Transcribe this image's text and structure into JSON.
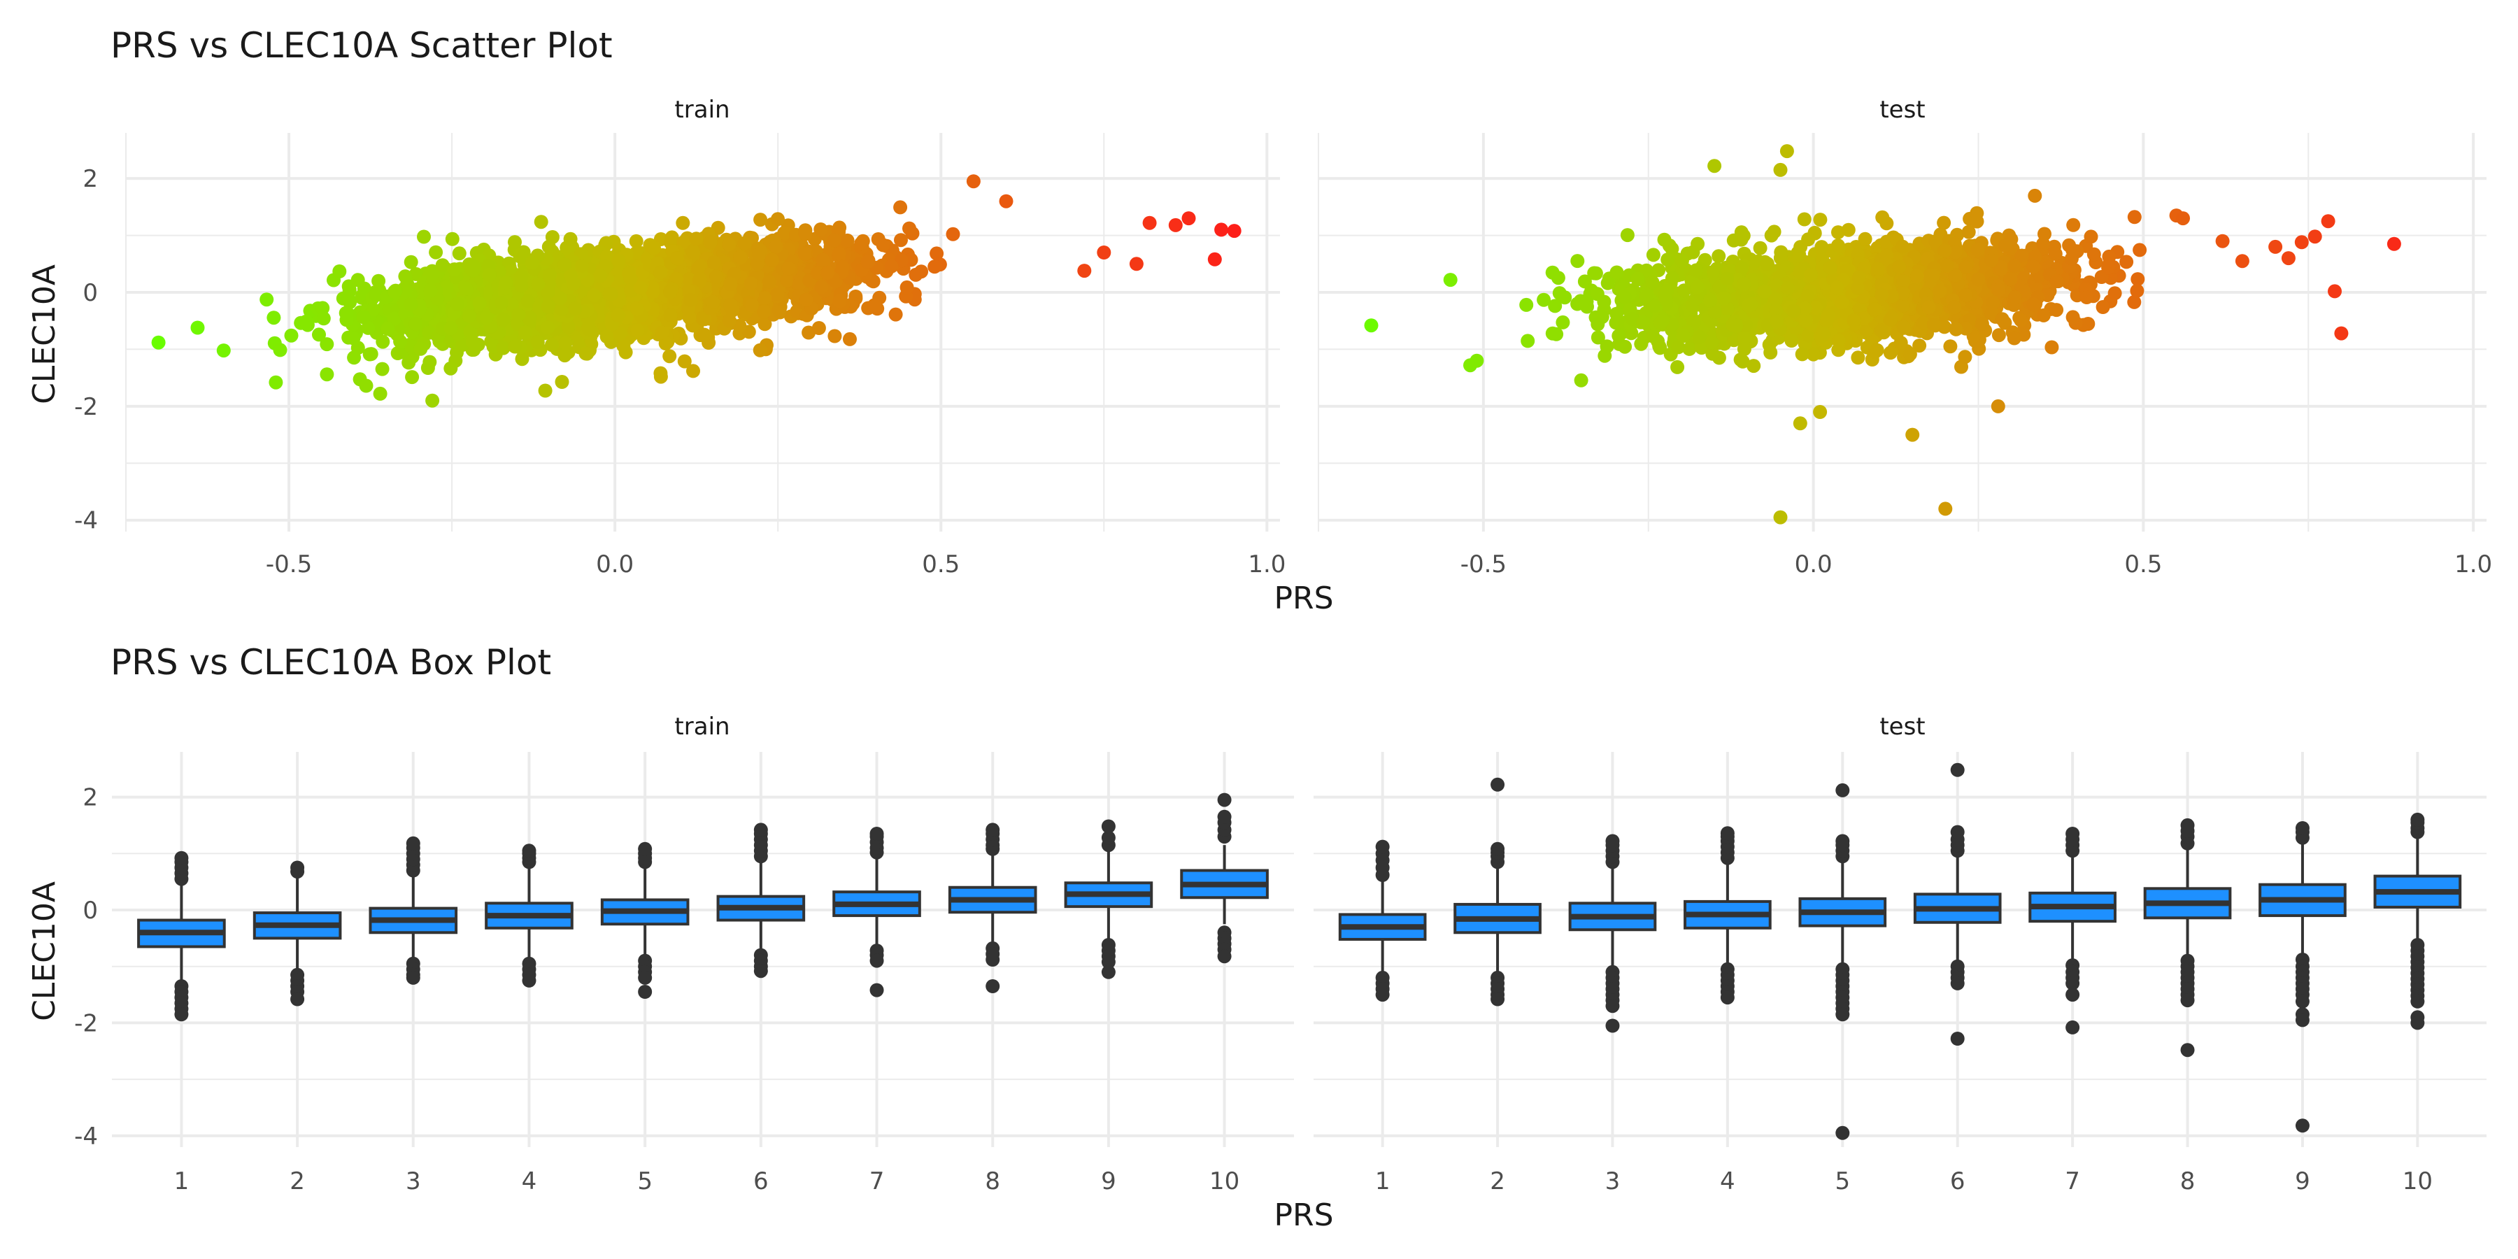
{
  "colors": {
    "background": "#ffffff",
    "grid": "#ebebeb",
    "tick_text": "#4d4d4d",
    "text": "#1a1a1a",
    "box_fill": "#1e90ff",
    "box_line": "#333333",
    "outlier": "#333333",
    "gradient_low": "#66ff00",
    "gradient_mid": "#c8b400",
    "gradient_high": "#ff1a1a"
  },
  "chart_data": [
    {
      "type": "scatter",
      "title": "PRS vs CLEC10A Scatter Plot",
      "xlabel": "PRS",
      "ylabel": "CLEC10A",
      "color_scale": "PRS gradient green-orange-red",
      "facets": [
        {
          "name": "train",
          "xlim": [
            -0.75,
            1.02
          ],
          "ylim": [
            -4.2,
            2.8
          ],
          "xticks": [
            "-0.5",
            "0.0",
            "0.5",
            "1.0"
          ],
          "xtick_values": [
            -0.5,
            0.0,
            0.5,
            1.0
          ],
          "yticks": [
            "2",
            "0",
            "-2",
            "-4"
          ],
          "ytick_values": [
            2,
            0,
            -2,
            -4
          ],
          "trend": {
            "slope": 1.05,
            "intercept": -0.02,
            "sd": 0.38
          },
          "x_range_dense": [
            -0.62,
            0.62
          ],
          "n_points": 2600,
          "extreme_points": [
            [
              -0.7,
              -0.88
            ],
            [
              -0.64,
              -0.62
            ],
            [
              -0.6,
              -1.02
            ],
            [
              -0.52,
              -1.58
            ],
            [
              -0.36,
              -1.78
            ],
            [
              -0.28,
              -1.9
            ],
            [
              0.07,
              -1.42
            ],
            [
              0.12,
              -1.38
            ],
            [
              0.55,
              1.95
            ],
            [
              0.6,
              1.6
            ],
            [
              0.72,
              0.38
            ],
            [
              0.75,
              0.7
            ],
            [
              0.8,
              0.5
            ],
            [
              0.82,
              1.22
            ],
            [
              0.86,
              1.18
            ],
            [
              0.88,
              1.3
            ],
            [
              0.92,
              0.58
            ],
            [
              0.93,
              1.1
            ],
            [
              0.95,
              1.08
            ]
          ]
        },
        {
          "name": "test",
          "xlim": [
            -0.75,
            1.02
          ],
          "ylim": [
            -4.2,
            2.8
          ],
          "xticks": [
            "-0.5",
            "0.0",
            "0.5",
            "1.0"
          ],
          "xtick_values": [
            -0.5,
            0.0,
            0.5,
            1.0
          ],
          "yticks": [
            "2",
            "0",
            "-2",
            "-4"
          ],
          "ytick_values": [
            2,
            0,
            -2,
            -4
          ],
          "trend": {
            "slope": 0.7,
            "intercept": -0.05,
            "sd": 0.4
          },
          "x_range_dense": [
            -0.5,
            0.6
          ],
          "n_points": 2200,
          "extreme_points": [
            [
              -0.67,
              -0.58
            ],
            [
              -0.55,
              0.22
            ],
            [
              -0.52,
              -1.28
            ],
            [
              -0.51,
              -1.2
            ],
            [
              -0.15,
              2.22
            ],
            [
              -0.05,
              2.15
            ],
            [
              -0.04,
              2.48
            ],
            [
              -0.05,
              -3.95
            ],
            [
              0.15,
              -2.5
            ],
            [
              -0.02,
              -2.3
            ],
            [
              0.01,
              -2.1
            ],
            [
              0.2,
              -3.8
            ],
            [
              0.28,
              -2.0
            ],
            [
              0.55,
              1.35
            ],
            [
              0.56,
              1.3
            ],
            [
              0.62,
              0.9
            ],
            [
              0.65,
              0.55
            ],
            [
              0.7,
              0.8
            ],
            [
              0.72,
              0.6
            ],
            [
              0.74,
              0.88
            ],
            [
              0.76,
              0.98
            ],
            [
              0.78,
              1.25
            ],
            [
              0.79,
              0.02
            ],
            [
              0.8,
              -0.72
            ],
            [
              0.88,
              0.85
            ]
          ]
        }
      ]
    },
    {
      "type": "box",
      "title": "PRS vs CLEC10A Box Plot",
      "xlabel": "PRS",
      "ylabel": "CLEC10A",
      "categories": [
        "1",
        "2",
        "3",
        "4",
        "5",
        "6",
        "7",
        "8",
        "9",
        "10"
      ],
      "ylim": [
        -4.2,
        2.8
      ],
      "yticks": [
        "2",
        "0",
        "-2",
        "-4"
      ],
      "ytick_values": [
        2,
        0,
        -2,
        -4
      ],
      "facets": [
        {
          "name": "train",
          "boxes": [
            {
              "q1": -0.65,
              "median": -0.4,
              "q3": -0.18,
              "whisker_low": -1.25,
              "whisker_high": 0.45,
              "outliers": [
                -1.35,
                -1.45,
                -1.55,
                -1.65,
                -1.75,
                -1.85,
                0.55,
                0.65,
                0.75,
                0.85,
                0.92
              ]
            },
            {
              "q1": -0.5,
              "median": -0.27,
              "q3": -0.05,
              "whisker_low": -1.05,
              "whisker_high": 0.62,
              "outliers": [
                -1.15,
                -1.25,
                -1.35,
                -1.45,
                -1.58,
                0.68,
                0.75
              ]
            },
            {
              "q1": -0.4,
              "median": -0.18,
              "q3": 0.03,
              "whisker_low": -0.9,
              "whisker_high": 0.62,
              "outliers": [
                -0.95,
                -1.05,
                -1.15,
                -1.2,
                0.7,
                0.8,
                0.9,
                1.0,
                1.1,
                1.18
              ]
            },
            {
              "q1": -0.32,
              "median": -0.1,
              "q3": 0.12,
              "whisker_low": -0.9,
              "whisker_high": 0.75,
              "outliers": [
                -0.95,
                -1.05,
                -1.15,
                -1.25,
                0.85,
                0.92,
                1.0,
                1.05
              ]
            },
            {
              "q1": -0.25,
              "median": -0.02,
              "q3": 0.18,
              "whisker_low": -0.85,
              "whisker_high": 0.8,
              "outliers": [
                -0.9,
                -1.0,
                -1.1,
                -1.2,
                -1.45,
                0.85,
                0.92,
                1.0,
                1.08
              ]
            },
            {
              "q1": -0.18,
              "median": 0.04,
              "q3": 0.24,
              "whisker_low": -0.75,
              "whisker_high": 0.85,
              "outliers": [
                -0.8,
                -0.9,
                -1.0,
                -1.08,
                0.95,
                1.05,
                1.15,
                1.25,
                1.35,
                1.42
              ]
            },
            {
              "q1": -0.1,
              "median": 0.1,
              "q3": 0.32,
              "whisker_low": -0.65,
              "whisker_high": 0.95,
              "outliers": [
                -0.72,
                -0.8,
                -0.9,
                -1.42,
                1.02,
                1.1,
                1.2,
                1.3,
                1.35
              ]
            },
            {
              "q1": -0.04,
              "median": 0.18,
              "q3": 0.4,
              "whisker_low": -0.6,
              "whisker_high": 1.0,
              "outliers": [
                -0.68,
                -0.78,
                -0.88,
                -1.35,
                1.08,
                1.15,
                1.25,
                1.35,
                1.42
              ]
            },
            {
              "q1": 0.06,
              "median": 0.28,
              "q3": 0.48,
              "whisker_low": -0.55,
              "whisker_high": 1.08,
              "outliers": [
                -0.62,
                -0.72,
                -0.82,
                -0.92,
                -1.1,
                1.15,
                1.28,
                1.48
              ]
            },
            {
              "q1": 0.22,
              "median": 0.45,
              "q3": 0.7,
              "whisker_low": -0.25,
              "whisker_high": 1.15,
              "outliers": [
                -0.4,
                -0.5,
                -0.6,
                -0.7,
                -0.82,
                1.3,
                1.42,
                1.55,
                1.65,
                1.95
              ]
            }
          ]
        },
        {
          "name": "test",
          "boxes": [
            {
              "q1": -0.52,
              "median": -0.3,
              "q3": -0.08,
              "whisker_low": -1.1,
              "whisker_high": 0.55,
              "outliers": [
                -1.2,
                -1.3,
                -1.4,
                -1.5,
                0.62,
                0.75,
                0.88,
                1.0,
                1.12
              ]
            },
            {
              "q1": -0.4,
              "median": -0.16,
              "q3": 0.1,
              "whisker_low": -1.1,
              "whisker_high": 0.8,
              "outliers": [
                -1.2,
                -1.3,
                -1.4,
                -1.5,
                -1.58,
                0.85,
                0.95,
                1.02,
                1.08,
                2.22
              ]
            },
            {
              "q1": -0.35,
              "median": -0.12,
              "q3": 0.12,
              "whisker_low": -1.05,
              "whisker_high": 0.8,
              "outliers": [
                -1.1,
                -1.2,
                -1.3,
                -1.4,
                -1.5,
                -1.6,
                -1.7,
                -2.05,
                0.85,
                0.95,
                1.05,
                1.15,
                1.22
              ]
            },
            {
              "q1": -0.32,
              "median": -0.08,
              "q3": 0.15,
              "whisker_low": -1.0,
              "whisker_high": 0.85,
              "outliers": [
                -1.05,
                -1.15,
                -1.25,
                -1.35,
                -1.45,
                -1.55,
                0.92,
                1.02,
                1.12,
                1.22,
                1.3,
                1.36
              ]
            },
            {
              "q1": -0.28,
              "median": -0.04,
              "q3": 0.2,
              "whisker_low": -1.0,
              "whisker_high": 0.9,
              "outliers": [
                -1.05,
                -1.15,
                -1.25,
                -1.35,
                -1.45,
                -1.55,
                -1.65,
                -1.75,
                -1.85,
                -3.95,
                0.95,
                1.05,
                1.15,
                1.22,
                2.12
              ]
            },
            {
              "q1": -0.22,
              "median": 0.02,
              "q3": 0.28,
              "whisker_low": -0.95,
              "whisker_high": 0.98,
              "outliers": [
                -1.0,
                -1.1,
                -1.2,
                -1.3,
                -2.28,
                1.05,
                1.15,
                1.25,
                1.38,
                2.48
              ]
            },
            {
              "q1": -0.2,
              "median": 0.06,
              "q3": 0.3,
              "whisker_low": -0.9,
              "whisker_high": 1.0,
              "outliers": [
                -0.98,
                -1.1,
                -1.2,
                -1.3,
                -1.5,
                -2.08,
                1.05,
                1.15,
                1.25,
                1.35
              ]
            },
            {
              "q1": -0.14,
              "median": 0.12,
              "q3": 0.38,
              "whisker_low": -0.85,
              "whisker_high": 1.1,
              "outliers": [
                -0.9,
                -1.0,
                -1.1,
                -1.2,
                -1.3,
                -1.4,
                -1.5,
                -1.6,
                -2.48,
                1.18,
                1.3,
                1.4,
                1.5
              ]
            },
            {
              "q1": -0.1,
              "median": 0.18,
              "q3": 0.45,
              "whisker_low": -0.82,
              "whisker_high": 1.2,
              "outliers": [
                -0.88,
                -1.0,
                -1.1,
                -1.2,
                -1.3,
                -1.4,
                -1.5,
                -1.62,
                -1.85,
                -1.95,
                -3.82,
                1.28,
                1.38,
                1.45
              ]
            },
            {
              "q1": 0.05,
              "median": 0.32,
              "q3": 0.6,
              "whisker_low": -0.55,
              "whisker_high": 1.3,
              "outliers": [
                -0.62,
                -0.72,
                -0.82,
                -0.92,
                -1.02,
                -1.12,
                -1.22,
                -1.32,
                -1.42,
                -1.52,
                -1.62,
                -1.9,
                -2.0,
                1.38,
                1.45,
                1.55,
                1.6
              ]
            }
          ]
        }
      ]
    }
  ]
}
